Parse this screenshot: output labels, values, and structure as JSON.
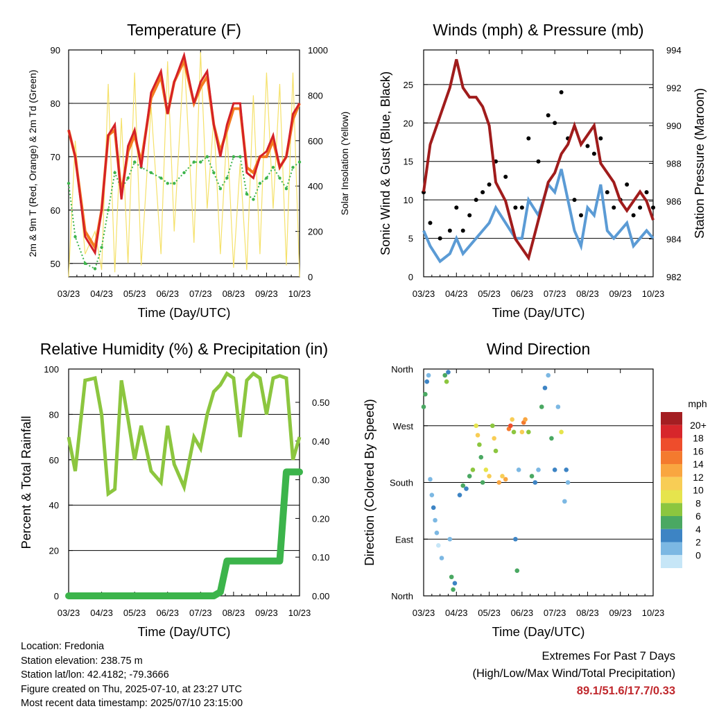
{
  "colors": {
    "temp_2m": "#d42127",
    "temp_9m": "#f47b20",
    "dewpoint": "#3cb44b",
    "solar": "#f5e16a",
    "sonic_wind": "#5b9bd5",
    "gust": "#000000",
    "pressure": "#a01c1c",
    "rh": "#8cc63f",
    "precip": "#3cb44b"
  },
  "x_ticks": [
    "03/23",
    "04/23",
    "05/23",
    "06/23",
    "07/23",
    "08/23",
    "09/23",
    "10/23"
  ],
  "x_title": "Time (Day/UTC)",
  "chart_data": [
    {
      "type": "line",
      "title": "Temperature (F)",
      "xlabel": "Time (Day/UTC)",
      "ylabel": "2m & 9m T (Red, Orange) & 2m Td (Green)",
      "ylabel_right": "Solar Insolation (Yellow)",
      "ylim": [
        47.5,
        90
      ],
      "ylim_right": [
        0,
        1000
      ],
      "yticks": [
        50,
        60,
        70,
        80,
        90
      ],
      "yticks_right": [
        0,
        200,
        400,
        600,
        800,
        1000
      ],
      "x": [
        0,
        0.2,
        0.5,
        0.8,
        1.0,
        1.2,
        1.4,
        1.6,
        1.8,
        2.0,
        2.2,
        2.5,
        2.8,
        3.0,
        3.2,
        3.5,
        3.8,
        4.0,
        4.2,
        4.4,
        4.6,
        4.8,
        5.0,
        5.2,
        5.4,
        5.6,
        5.8,
        6.0,
        6.2,
        6.4,
        6.6,
        6.8,
        7.0
      ],
      "series": [
        {
          "name": "2m T",
          "axis": "left",
          "values": [
            75,
            70,
            55,
            52,
            60,
            74,
            76,
            62,
            72,
            75,
            68,
            82,
            86,
            78,
            84,
            89,
            80,
            84,
            86,
            76,
            70,
            76,
            80,
            80,
            67,
            66,
            70,
            71,
            74,
            68,
            70,
            78,
            80
          ]
        },
        {
          "name": "9m T",
          "axis": "left",
          "values": [
            75,
            70,
            56,
            53,
            60,
            74,
            75,
            63,
            71,
            74,
            69,
            81,
            85,
            78,
            84,
            88,
            80,
            83,
            85,
            76,
            71,
            75,
            79,
            79,
            68,
            67,
            70,
            70,
            73,
            68,
            70,
            77,
            80
          ]
        },
        {
          "name": "2m Td",
          "axis": "left",
          "values": [
            65,
            55,
            50,
            49,
            53,
            60,
            67,
            64,
            66,
            69,
            68,
            67,
            66,
            65,
            65,
            67,
            69,
            69,
            70,
            67,
            64,
            66,
            70,
            70,
            63,
            62,
            65,
            66,
            68,
            66,
            64,
            68,
            69
          ]
        },
        {
          "name": "Solar Insolation",
          "axis": "right",
          "values": [
            0,
            600,
            100,
            200,
            30,
            850,
            20,
            700,
            60,
            900,
            50,
            750,
            100,
            950,
            200,
            980,
            150,
            990,
            300,
            700,
            100,
            650,
            40,
            500,
            30,
            800,
            100,
            900,
            300,
            850,
            50,
            900,
            0
          ]
        }
      ]
    },
    {
      "type": "line",
      "title": "Winds (mph) & Pressure (mb)",
      "xlabel": "Time (Day/UTC)",
      "ylabel": "Sonic Wind & Gust (Blue, Black)",
      "ylabel_right": "Station Pressure (Maroon)",
      "ylim": [
        0,
        29.5
      ],
      "ylim_right": [
        982,
        994
      ],
      "yticks": [
        0,
        5,
        10,
        15,
        20,
        25
      ],
      "yticks_right": [
        982,
        984,
        986,
        988,
        990,
        992,
        994
      ],
      "x": [
        0,
        0.2,
        0.5,
        0.8,
        1.0,
        1.2,
        1.4,
        1.6,
        1.8,
        2.0,
        2.2,
        2.5,
        2.8,
        3.0,
        3.2,
        3.5,
        3.8,
        4.0,
        4.2,
        4.4,
        4.6,
        4.8,
        5.0,
        5.2,
        5.4,
        5.6,
        5.8,
        6.0,
        6.2,
        6.4,
        6.6,
        6.8,
        7.0
      ],
      "series": [
        {
          "name": "Pressure",
          "axis": "right",
          "values": [
            986.5,
            989,
            990.5,
            992,
            993.5,
            992,
            991.5,
            991.5,
            991,
            990,
            987,
            986,
            984,
            983.5,
            983,
            985,
            987,
            987.5,
            988.5,
            989,
            990,
            989,
            989.5,
            990,
            988,
            987.5,
            987,
            986,
            985.5,
            986,
            986.5,
            986,
            985
          ]
        },
        {
          "name": "Sonic Wind",
          "axis": "left",
          "values": [
            6,
            4,
            2,
            3,
            5,
            3,
            4,
            5,
            6,
            7,
            9,
            7,
            5,
            5,
            10,
            8,
            12,
            11,
            14,
            10,
            6,
            4,
            9,
            8,
            12,
            6,
            5,
            6,
            7,
            4,
            5,
            6,
            5
          ]
        },
        {
          "name": "Gust",
          "axis": "left",
          "values": [
            11,
            7,
            5,
            6,
            9,
            6,
            8,
            10,
            11,
            12,
            15,
            13,
            9,
            9,
            18,
            15,
            21,
            20,
            24,
            18,
            10,
            8,
            17,
            16,
            18,
            11,
            9,
            10,
            12,
            8,
            9,
            11,
            9
          ]
        }
      ]
    },
    {
      "type": "line",
      "title": "Relative Humidity (%) & Precipitation (in)",
      "xlabel": "Time (Day/UTC)",
      "ylabel": "Percent & Total Rainfall",
      "ylim": [
        0,
        100
      ],
      "ylim_right": [
        0,
        0.586
      ],
      "yticks": [
        0,
        20,
        40,
        60,
        80,
        100
      ],
      "yticks_right": [
        0,
        0.1,
        0.2,
        0.3,
        0.4,
        0.5
      ],
      "yticks_right_labels": [
        "0.00",
        "0.10",
        "0.20",
        "0.30",
        "0.40",
        "0.50"
      ],
      "x": [
        0,
        0.2,
        0.5,
        0.8,
        1.0,
        1.2,
        1.4,
        1.6,
        1.8,
        2.0,
        2.2,
        2.5,
        2.8,
        3.0,
        3.2,
        3.5,
        3.8,
        4.0,
        4.2,
        4.4,
        4.6,
        4.8,
        5.0,
        5.2,
        5.4,
        5.6,
        5.8,
        6.0,
        6.2,
        6.4,
        6.6,
        6.8,
        7.0
      ],
      "series": [
        {
          "name": "Relative Humidity",
          "axis": "left",
          "values": [
            70,
            55,
            95,
            96,
            80,
            45,
            47,
            95,
            78,
            60,
            75,
            55,
            50,
            75,
            58,
            48,
            70,
            65,
            80,
            90,
            93,
            98,
            96,
            70,
            95,
            98,
            96,
            80,
            96,
            97,
            96,
            60,
            70
          ]
        },
        {
          "name": "Total Precipitation",
          "axis": "right",
          "values": [
            0,
            0,
            0,
            0,
            0,
            0,
            0,
            0,
            0,
            0,
            0,
            0,
            0,
            0,
            0,
            0,
            0,
            0,
            0,
            0,
            0.01,
            0.09,
            0.09,
            0.09,
            0.09,
            0.09,
            0.09,
            0.09,
            0.09,
            0.09,
            0.32,
            0.32,
            0.32
          ]
        }
      ]
    },
    {
      "type": "scatter",
      "title": "Wind Direction",
      "xlabel": "Time (Day/UTC)",
      "ylabel": "Direction (Colored By Speed)",
      "ylim": [
        0,
        360
      ],
      "yticks": [
        0,
        90,
        180,
        270,
        360
      ],
      "ytick_labels": [
        "North",
        "East",
        "South",
        "West",
        "North"
      ],
      "colorbar_title": "mph",
      "colorbar_labels": [
        "20+",
        "18",
        "16",
        "14",
        "12",
        "10",
        "8",
        "6",
        "4",
        "2",
        "0"
      ],
      "colorbar_colors": [
        "#a41e22",
        "#d7262b",
        "#ee4d2c",
        "#f47a2e",
        "#f9a640",
        "#f8cd55",
        "#e6e44d",
        "#8cc63f",
        "#4aa862",
        "#3d84c4",
        "#7cb8e3",
        "#c6e6f7"
      ],
      "points": [
        {
          "x": 0.0,
          "dir": 300,
          "speed": 6
        },
        {
          "x": 0.05,
          "dir": 320,
          "speed": 7
        },
        {
          "x": 0.1,
          "dir": 340,
          "speed": 5
        },
        {
          "x": 0.15,
          "dir": 350,
          "speed": 3
        },
        {
          "x": 0.2,
          "dir": 185,
          "speed": 3
        },
        {
          "x": 0.25,
          "dir": 160,
          "speed": 2
        },
        {
          "x": 0.3,
          "dir": 140,
          "speed": 4
        },
        {
          "x": 0.35,
          "dir": 120,
          "speed": 2
        },
        {
          "x": 0.4,
          "dir": 100,
          "speed": 3
        },
        {
          "x": 0.45,
          "dir": 80,
          "speed": 1
        },
        {
          "x": 0.55,
          "dir": 60,
          "speed": 2
        },
        {
          "x": 0.65,
          "dir": 350,
          "speed": 6
        },
        {
          "x": 0.7,
          "dir": 340,
          "speed": 8
        },
        {
          "x": 0.75,
          "dir": 355,
          "speed": 4
        },
        {
          "x": 0.8,
          "dir": 90,
          "speed": 3
        },
        {
          "x": 0.85,
          "dir": 30,
          "speed": 6
        },
        {
          "x": 0.9,
          "dir": 10,
          "speed": 7
        },
        {
          "x": 0.95,
          "dir": 20,
          "speed": 5
        },
        {
          "x": 1.1,
          "dir": 160,
          "speed": 4
        },
        {
          "x": 1.2,
          "dir": 175,
          "speed": 6
        },
        {
          "x": 1.3,
          "dir": 170,
          "speed": 5
        },
        {
          "x": 1.4,
          "dir": 190,
          "speed": 7
        },
        {
          "x": 1.5,
          "dir": 200,
          "speed": 8
        },
        {
          "x": 1.6,
          "dir": 270,
          "speed": 11
        },
        {
          "x": 1.65,
          "dir": 255,
          "speed": 13
        },
        {
          "x": 1.7,
          "dir": 240,
          "speed": 9
        },
        {
          "x": 1.75,
          "dir": 220,
          "speed": 6
        },
        {
          "x": 1.8,
          "dir": 180,
          "speed": 7
        },
        {
          "x": 1.9,
          "dir": 200,
          "speed": 11
        },
        {
          "x": 2.0,
          "dir": 190,
          "speed": 12
        },
        {
          "x": 2.1,
          "dir": 270,
          "speed": 9
        },
        {
          "x": 2.15,
          "dir": 250,
          "speed": 12
        },
        {
          "x": 2.2,
          "dir": 230,
          "speed": 8
        },
        {
          "x": 2.3,
          "dir": 180,
          "speed": 14
        },
        {
          "x": 2.4,
          "dir": 190,
          "speed": 13
        },
        {
          "x": 2.5,
          "dir": 185,
          "speed": 14
        },
        {
          "x": 2.6,
          "dir": 265,
          "speed": 16
        },
        {
          "x": 2.65,
          "dir": 270,
          "speed": 18
        },
        {
          "x": 2.7,
          "dir": 280,
          "speed": 13
        },
        {
          "x": 2.75,
          "dir": 260,
          "speed": 9
        },
        {
          "x": 2.8,
          "dir": 90,
          "speed": 5
        },
        {
          "x": 2.85,
          "dir": 40,
          "speed": 6
        },
        {
          "x": 2.9,
          "dir": 200,
          "speed": 3
        },
        {
          "x": 3.0,
          "dir": 260,
          "speed": 12
        },
        {
          "x": 3.05,
          "dir": 275,
          "speed": 16
        },
        {
          "x": 3.1,
          "dir": 280,
          "speed": 14
        },
        {
          "x": 3.2,
          "dir": 260,
          "speed": 8
        },
        {
          "x": 3.3,
          "dir": 190,
          "speed": 6
        },
        {
          "x": 3.4,
          "dir": 180,
          "speed": 5
        },
        {
          "x": 3.5,
          "dir": 200,
          "speed": 3
        },
        {
          "x": 3.6,
          "dir": 300,
          "speed": 6
        },
        {
          "x": 3.7,
          "dir": 330,
          "speed": 4
        },
        {
          "x": 3.8,
          "dir": 350,
          "speed": 2
        },
        {
          "x": 3.9,
          "dir": 250,
          "speed": 7
        },
        {
          "x": 4.0,
          "dir": 200,
          "speed": 4
        },
        {
          "x": 4.1,
          "dir": 300,
          "speed": 3
        },
        {
          "x": 4.2,
          "dir": 260,
          "speed": 10
        },
        {
          "x": 4.3,
          "dir": 150,
          "speed": 3
        },
        {
          "x": 4.35,
          "dir": 200,
          "speed": 4
        },
        {
          "x": 4.4,
          "dir": 180,
          "speed": 2
        }
      ]
    }
  ],
  "panels": {
    "temp": {
      "title": "Temperature (F)",
      "ylabel": "2m & 9m T (Red, Orange) & 2m Td (Green)",
      "ylabel_right": "Solar Insolation (Yellow)",
      "yticks": [
        "50",
        "60",
        "70",
        "80",
        "90"
      ],
      "yticks_right": [
        "0",
        "200",
        "400",
        "600",
        "800",
        "1000"
      ]
    },
    "wind": {
      "title": "Winds (mph) & Pressure (mb)",
      "ylabel": "Sonic Wind & Gust (Blue, Black)",
      "ylabel_right": "Station Pressure (Maroon)",
      "yticks": [
        "0",
        "5",
        "10",
        "15",
        "20",
        "25"
      ],
      "yticks_right": [
        "982",
        "984",
        "986",
        "988",
        "990",
        "992",
        "994"
      ]
    },
    "rh": {
      "title": "Relative Humidity (%) & Precipitation (in)",
      "ylabel": "Percent & Total Rainfall",
      "yticks": [
        "0",
        "20",
        "40",
        "60",
        "80",
        "100"
      ],
      "yticks_right": [
        "0.00",
        "0.10",
        "0.20",
        "0.30",
        "0.40",
        "0.50"
      ]
    },
    "dir": {
      "title": "Wind Direction",
      "ylabel": "Direction (Colored By Speed)",
      "yticks": [
        "North",
        "East",
        "South",
        "West",
        "North"
      ]
    }
  },
  "legend": {
    "title": "mph",
    "labels": [
      "20+",
      "18",
      "16",
      "14",
      "12",
      "10",
      "8",
      "6",
      "4",
      "2",
      "0"
    ]
  },
  "info": {
    "location": "Location: Fredonia",
    "elevation": "Station elevation: 238.75 m",
    "latlon": "Station lat/lon: 42.4182; -79.3666",
    "created": "Figure created on Thu, 2025-07-10, at 23:27 UTC",
    "recent": "Most recent data timestamp: 2025/07/10 23:15:00"
  },
  "extremes": {
    "line1": "Extremes For Past 7 Days",
    "line2": "(High/Low/Max Wind/Total Precipitation)",
    "values": "89.1/51.6/17.7/0.33"
  }
}
